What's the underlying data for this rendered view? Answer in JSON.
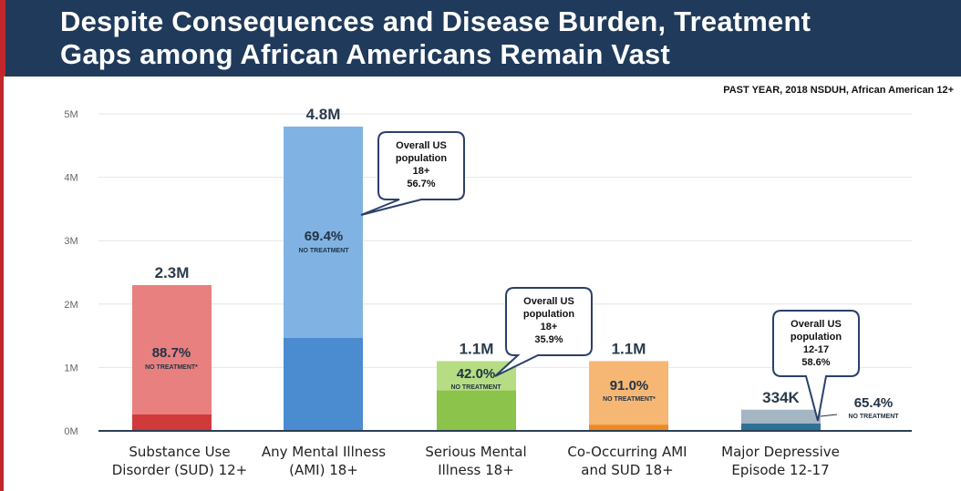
{
  "header": {
    "title_line1": "Despite Consequences and Disease Burden, Treatment",
    "title_line2": "Gaps among African Americans Remain Vast"
  },
  "source_note": "PAST YEAR, 2018 NSDUH, African American 12+",
  "colors": {
    "header_bg": "#1f3a5a",
    "accent_red": "#c0282d"
  },
  "chart_data": {
    "type": "bar",
    "ylim": [
      0,
      5
    ],
    "yticks": [
      {
        "value": 0,
        "label": "0M"
      },
      {
        "value": 1,
        "label": "1M"
      },
      {
        "value": 2,
        "label": "2M"
      },
      {
        "value": 3,
        "label": "3M"
      },
      {
        "value": 4,
        "label": "4M"
      },
      {
        "value": 5,
        "label": "5M"
      }
    ],
    "grid": true,
    "bars": [
      {
        "label_line1": "Substance Use",
        "label_line2": "Disorder (SUD) 12+",
        "total": 2.3,
        "total_label": "2.3M",
        "no_treatment_pct": 88.7,
        "pct_label": "88.7%",
        "sub_label": "NO TREATMENT*",
        "light_color": "#e88080",
        "dark_color": "#d13a3a",
        "pct_text_color": "#223344"
      },
      {
        "label_line1": "Any Mental Illness",
        "label_line2": "(AMI) 18+",
        "total": 4.8,
        "total_label": "4.8M",
        "no_treatment_pct": 69.4,
        "pct_label": "69.4%",
        "sub_label": "NO TREATMENT",
        "light_color": "#80b3e3",
        "dark_color": "#4a8ccf",
        "pct_text_color": "#223344",
        "callout": [
          "Overall US",
          "population",
          "18+",
          "56.7%"
        ]
      },
      {
        "label_line1": "Serious Mental",
        "label_line2": "Illness 18+",
        "total": 1.1,
        "total_label": "1.1M",
        "no_treatment_pct": 42.0,
        "pct_label": "42.0%",
        "sub_label": "NO TREATMENT",
        "light_color": "#b6dc84",
        "dark_color": "#8cc34a",
        "pct_text_color": "#223344",
        "callout": [
          "Overall US",
          "population",
          "18+",
          "35.9%"
        ]
      },
      {
        "label_line1": "Co-Occurring AMI",
        "label_line2": "and SUD 18+",
        "total": 1.1,
        "total_label": "1.1M",
        "no_treatment_pct": 91.0,
        "pct_label": "91.0%",
        "sub_label": "NO TREATMENT*",
        "light_color": "#f7b774",
        "dark_color": "#ee8a22",
        "pct_text_color": "#223344"
      },
      {
        "label_line1": "Major Depressive",
        "label_line2": "Episode 12-17",
        "total": 0.334,
        "total_label": "334K",
        "no_treatment_pct": 65.4,
        "pct_label": "65.4%",
        "sub_label": "NO TREATMENT",
        "light_color": "#a4b5c4",
        "dark_color": "#2f7196",
        "pct_text_color": "#223344",
        "callout": [
          "Overall US",
          "population",
          "12-17",
          "58.6%"
        ]
      }
    ]
  }
}
